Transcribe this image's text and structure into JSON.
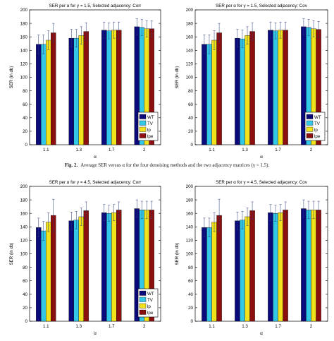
{
  "caption": {
    "fig_label": "Fig. 2.",
    "text": "Average SER versus α for the four denoising methods and the two adjacency matrices (γ = 1.5)."
  },
  "chart_data": [
    {
      "type": "bar",
      "title": "SER per α for γ = 1.5, Selected adjacency: Corr",
      "xlabel": "α",
      "ylabel": "SER (in db)",
      "ylim": [
        0,
        200
      ],
      "yticks": [
        0,
        20,
        40,
        60,
        80,
        100,
        120,
        140,
        160,
        180,
        200
      ],
      "categories": [
        "1.1",
        "1.3",
        "1.7",
        "2"
      ],
      "series": [
        {
          "name": "WT",
          "color": "#0a0a7a",
          "values": [
            149,
            158,
            170,
            175
          ],
          "errors": [
            14,
            13,
            12,
            12
          ]
        },
        {
          "name": "TV",
          "color": "#33c8e8",
          "values": [
            149,
            158,
            169,
            174
          ],
          "errors": [
            14,
            13,
            12,
            12
          ]
        },
        {
          "name": "lp",
          "color": "#f2e21c",
          "values": [
            155,
            162,
            170,
            172
          ],
          "errors": [
            14,
            13,
            12,
            12
          ]
        },
        {
          "name": "lpe",
          "color": "#8b0f0f",
          "values": [
            166,
            168,
            170,
            172
          ],
          "errors": [
            14,
            13,
            12,
            12
          ]
        }
      ],
      "legend": "bottom-right",
      "grid": false
    },
    {
      "type": "bar",
      "title": "SER per α for γ = 1.5, Selected adjacency: Cov",
      "xlabel": "α",
      "ylabel": "SER (in db)",
      "ylim": [
        0,
        200
      ],
      "yticks": [
        0,
        20,
        40,
        60,
        80,
        100,
        120,
        140,
        160,
        180,
        200
      ],
      "categories": [
        "1.1",
        "1.3",
        "1.7",
        "2"
      ],
      "series": [
        {
          "name": "WT",
          "color": "#0a0a7a",
          "values": [
            149,
            158,
            170,
            175
          ],
          "errors": [
            14,
            13,
            12,
            12
          ]
        },
        {
          "name": "TV",
          "color": "#33c8e8",
          "values": [
            149,
            157,
            169,
            174
          ],
          "errors": [
            14,
            13,
            12,
            12
          ]
        },
        {
          "name": "lp",
          "color": "#f2e21c",
          "values": [
            155,
            162,
            170,
            172
          ],
          "errors": [
            14,
            13,
            12,
            12
          ]
        },
        {
          "name": "lpe",
          "color": "#8b0f0f",
          "values": [
            166,
            168,
            170,
            171
          ],
          "errors": [
            14,
            13,
            12,
            12
          ]
        }
      ],
      "legend": "bottom-right",
      "grid": false
    },
    {
      "type": "bar",
      "title": "SER per α for γ = 4.5, Selected adjacency: Corr",
      "xlabel": "α",
      "ylabel": "SER (in db)",
      "ylim": [
        0,
        200
      ],
      "yticks": [
        0,
        20,
        40,
        60,
        80,
        100,
        120,
        140,
        160,
        180,
        200
      ],
      "categories": [
        "1.1",
        "1.3",
        "1.7",
        "2"
      ],
      "series": [
        {
          "name": "WT",
          "color": "#0a0a7a",
          "values": [
            139,
            149,
            161,
            167
          ],
          "errors": [
            14,
            13,
            12,
            13
          ]
        },
        {
          "name": "TV",
          "color": "#33c8e8",
          "values": [
            134,
            150,
            160,
            165
          ],
          "errors": [
            14,
            13,
            12,
            13
          ]
        },
        {
          "name": "lp",
          "color": "#f2e21c",
          "values": [
            147,
            155,
            161,
            165
          ],
          "errors": [
            14,
            13,
            12,
            13
          ]
        },
        {
          "name": "lpe",
          "color": "#8b0f0f",
          "values": [
            157,
            164,
            165,
            165
          ],
          "errors": [
            24,
            13,
            12,
            13
          ]
        }
      ],
      "legend": "bottom-right",
      "grid": false
    },
    {
      "type": "bar",
      "title": "SER per α for γ = 4.5, Selected adjacency: Cov",
      "xlabel": "α",
      "ylabel": "SER (in db)",
      "ylim": [
        0,
        200
      ],
      "yticks": [
        0,
        20,
        40,
        60,
        80,
        100,
        120,
        140,
        160,
        180,
        200
      ],
      "categories": [
        "1.1",
        "1.3",
        "1.7",
        "2"
      ],
      "series": [
        {
          "name": "WT",
          "color": "#0a0a7a",
          "values": [
            139,
            149,
            161,
            167
          ],
          "errors": [
            14,
            13,
            12,
            13
          ]
        },
        {
          "name": "TV",
          "color": "#33c8e8",
          "values": [
            139,
            150,
            160,
            165
          ],
          "errors": [
            14,
            13,
            12,
            13
          ]
        },
        {
          "name": "lp",
          "color": "#f2e21c",
          "values": [
            147,
            155,
            161,
            165
          ],
          "errors": [
            14,
            13,
            12,
            13
          ]
        },
        {
          "name": "lpe",
          "color": "#8b0f0f",
          "values": [
            157,
            164,
            165,
            165
          ],
          "errors": [
            24,
            13,
            12,
            13
          ]
        }
      ],
      "legend": "none",
      "grid": false
    }
  ]
}
